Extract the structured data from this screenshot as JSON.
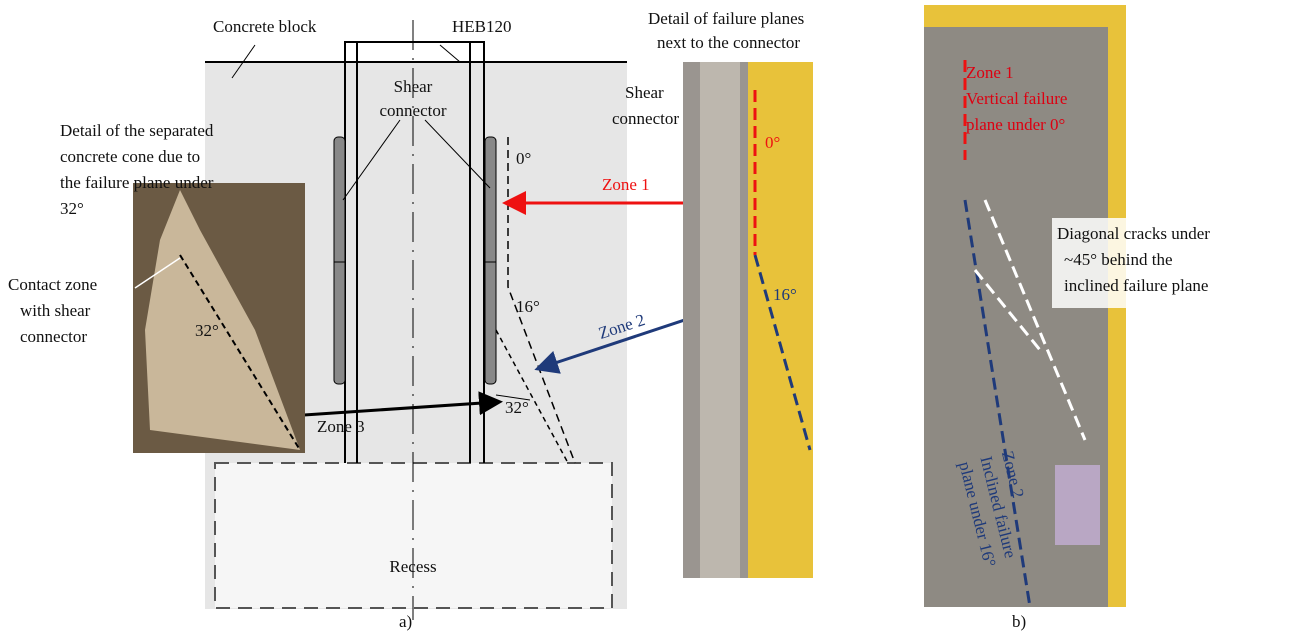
{
  "labels": {
    "concrete_block": "Concrete block",
    "heb": "HEB120",
    "detail_planes": [
      "Detail of failure planes",
      "next to the connector"
    ],
    "shear_connector": [
      "Shear",
      "connector"
    ],
    "cone_detail": [
      "Detail of the separated",
      "concrete cone due to",
      "the failure plane under",
      "32°"
    ],
    "contact_zone": [
      "Contact zone",
      "with shear",
      "connector"
    ],
    "angle_cone": "32°",
    "angle_0": "0°",
    "angle_16": "16°",
    "angle_32": "32°",
    "zone1": "Zone 1",
    "zone2": "Zone 2",
    "zone3": "Zone 3",
    "recess": "Recess",
    "photo_shear_connector": [
      "Shear",
      "connector"
    ],
    "photo_angle_0": "0°",
    "photo_angle_16": "16°",
    "right_zone1": [
      "Zone 1",
      "Vertical failure",
      "plane under 0°"
    ],
    "right_cracks": [
      "Diagonal cracks under",
      "~45° behind the",
      "inclined failure plane"
    ],
    "right_zone2": [
      "Zone 2",
      "Inclined failure",
      "plane under 16°"
    ],
    "caption_a": "a)",
    "caption_b": "b)"
  }
}
